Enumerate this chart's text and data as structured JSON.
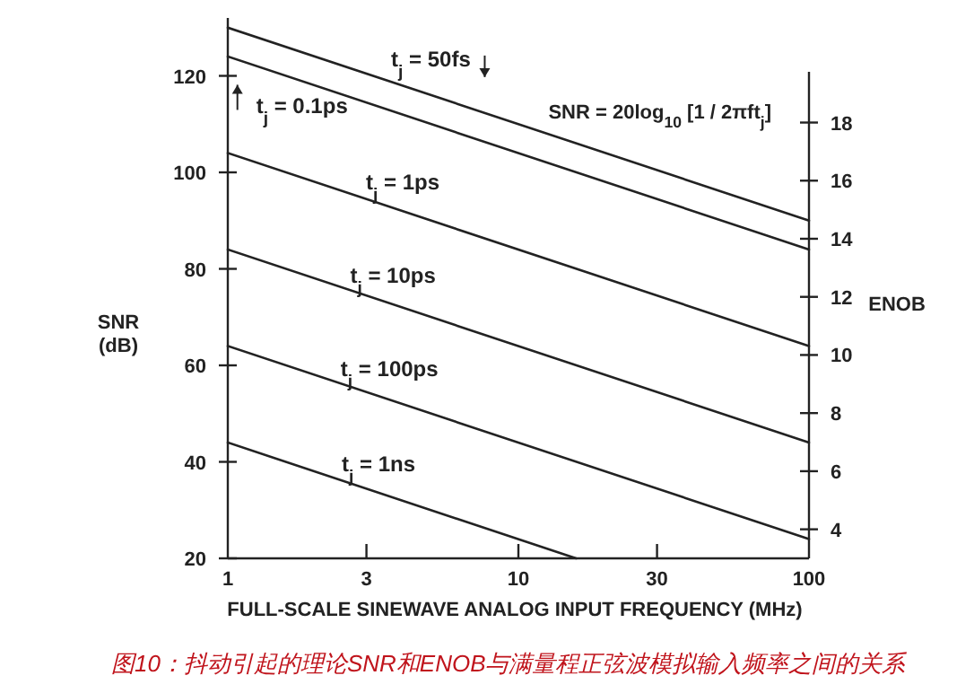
{
  "chart_data": {
    "type": "line",
    "title": "图10：抖动引起的理论SNR和ENOB与满量程正弦波模拟输入频率之间的关系",
    "xlabel": "FULL-SCALE SINEWAVE ANALOG INPUT FREQUENCY (MHz)",
    "ylabel": "SNR (dB)",
    "y2label": "ENOB",
    "annotations": [
      "SNR = 20log$_{10}$ [1 / 2πft$_{j}$]"
    ],
    "log": "x",
    "xlim": [
      1,
      100
    ],
    "xticks": [
      1,
      3,
      10,
      30,
      100
    ],
    "ylim": [
      20,
      132
    ],
    "yticks": [
      20,
      40,
      60,
      80,
      100,
      120
    ],
    "y2lim": [
      3.0,
      21.6
    ],
    "y2ticks": [
      4,
      6,
      8,
      10,
      12,
      14,
      16,
      18
    ],
    "grid": false,
    "marker": "none",
    "line_style": "solid",
    "series": [
      {
        "name": "t$_{j}$ = 50fs",
        "color": "#222222",
        "x": [
          1,
          100
        ],
        "values": [
          130,
          90
        ]
      },
      {
        "name": "t$_{j}$ = 0.1ps",
        "color": "#222222",
        "x": [
          1,
          100
        ],
        "values": [
          124,
          84
        ]
      },
      {
        "name": "t$_{j}$ = 1ps",
        "color": "#222222",
        "x": [
          1,
          100
        ],
        "values": [
          104,
          64
        ]
      },
      {
        "name": "t$_{j}$ = 10ps",
        "color": "#222222",
        "x": [
          1,
          100
        ],
        "values": [
          84,
          44
        ]
      },
      {
        "name": "t$_{j}$ = 100ps",
        "color": "#222222",
        "x": [
          1,
          100
        ],
        "values": [
          64,
          24
        ]
      },
      {
        "name": "t$_{j}$ = 1ns",
        "color": "#222222",
        "x": [
          1,
          15.8
        ],
        "values": [
          44,
          20
        ]
      }
    ]
  }
}
